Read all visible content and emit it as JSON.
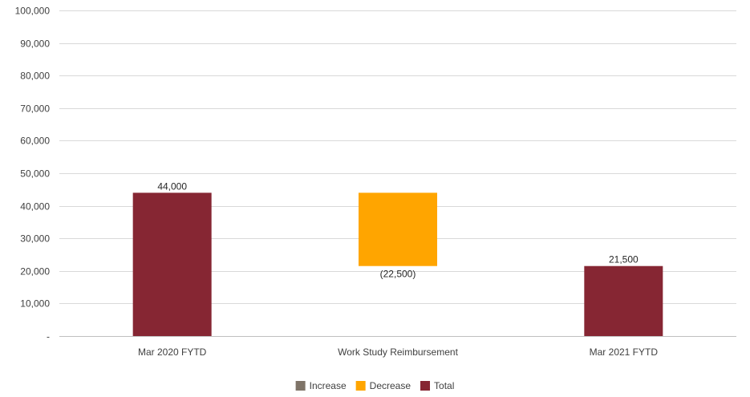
{
  "chart_data": {
    "type": "bar",
    "subtype": "waterfall",
    "categories": [
      "Mar 2020 FYTD",
      "Work Study Reimbursement",
      "Mar 2021 FYTD"
    ],
    "steps": [
      {
        "category": "Mar 2020 FYTD",
        "kind": "total",
        "value": 44000,
        "label": "44,000"
      },
      {
        "category": "Work Study Reimbursement",
        "kind": "decrease",
        "value": -22500,
        "label": "(22,500)"
      },
      {
        "category": "Mar 2021 FYTD",
        "kind": "total",
        "value": 21500,
        "label": "21,500"
      }
    ],
    "ylim": [
      0,
      100000
    ],
    "y_ticks": [
      {
        "value": 0,
        "label": "-"
      },
      {
        "value": 10000,
        "label": "10,000"
      },
      {
        "value": 20000,
        "label": "20,000"
      },
      {
        "value": 30000,
        "label": "30,000"
      },
      {
        "value": 40000,
        "label": "40,000"
      },
      {
        "value": 50000,
        "label": "50,000"
      },
      {
        "value": 60000,
        "label": "60,000"
      },
      {
        "value": 70000,
        "label": "70,000"
      },
      {
        "value": 80000,
        "label": "80,000"
      },
      {
        "value": 90000,
        "label": "90,000"
      },
      {
        "value": 100000,
        "label": "100,000"
      }
    ],
    "grid": true,
    "legend_position": "bottom",
    "legend": [
      {
        "name": "Increase",
        "color": "#7f7468"
      },
      {
        "name": "Decrease",
        "color": "#ffa500"
      },
      {
        "name": "Total",
        "color": "#862633"
      }
    ],
    "colors": {
      "increase": "#7f7468",
      "decrease": "#ffa500",
      "total": "#862633"
    }
  }
}
